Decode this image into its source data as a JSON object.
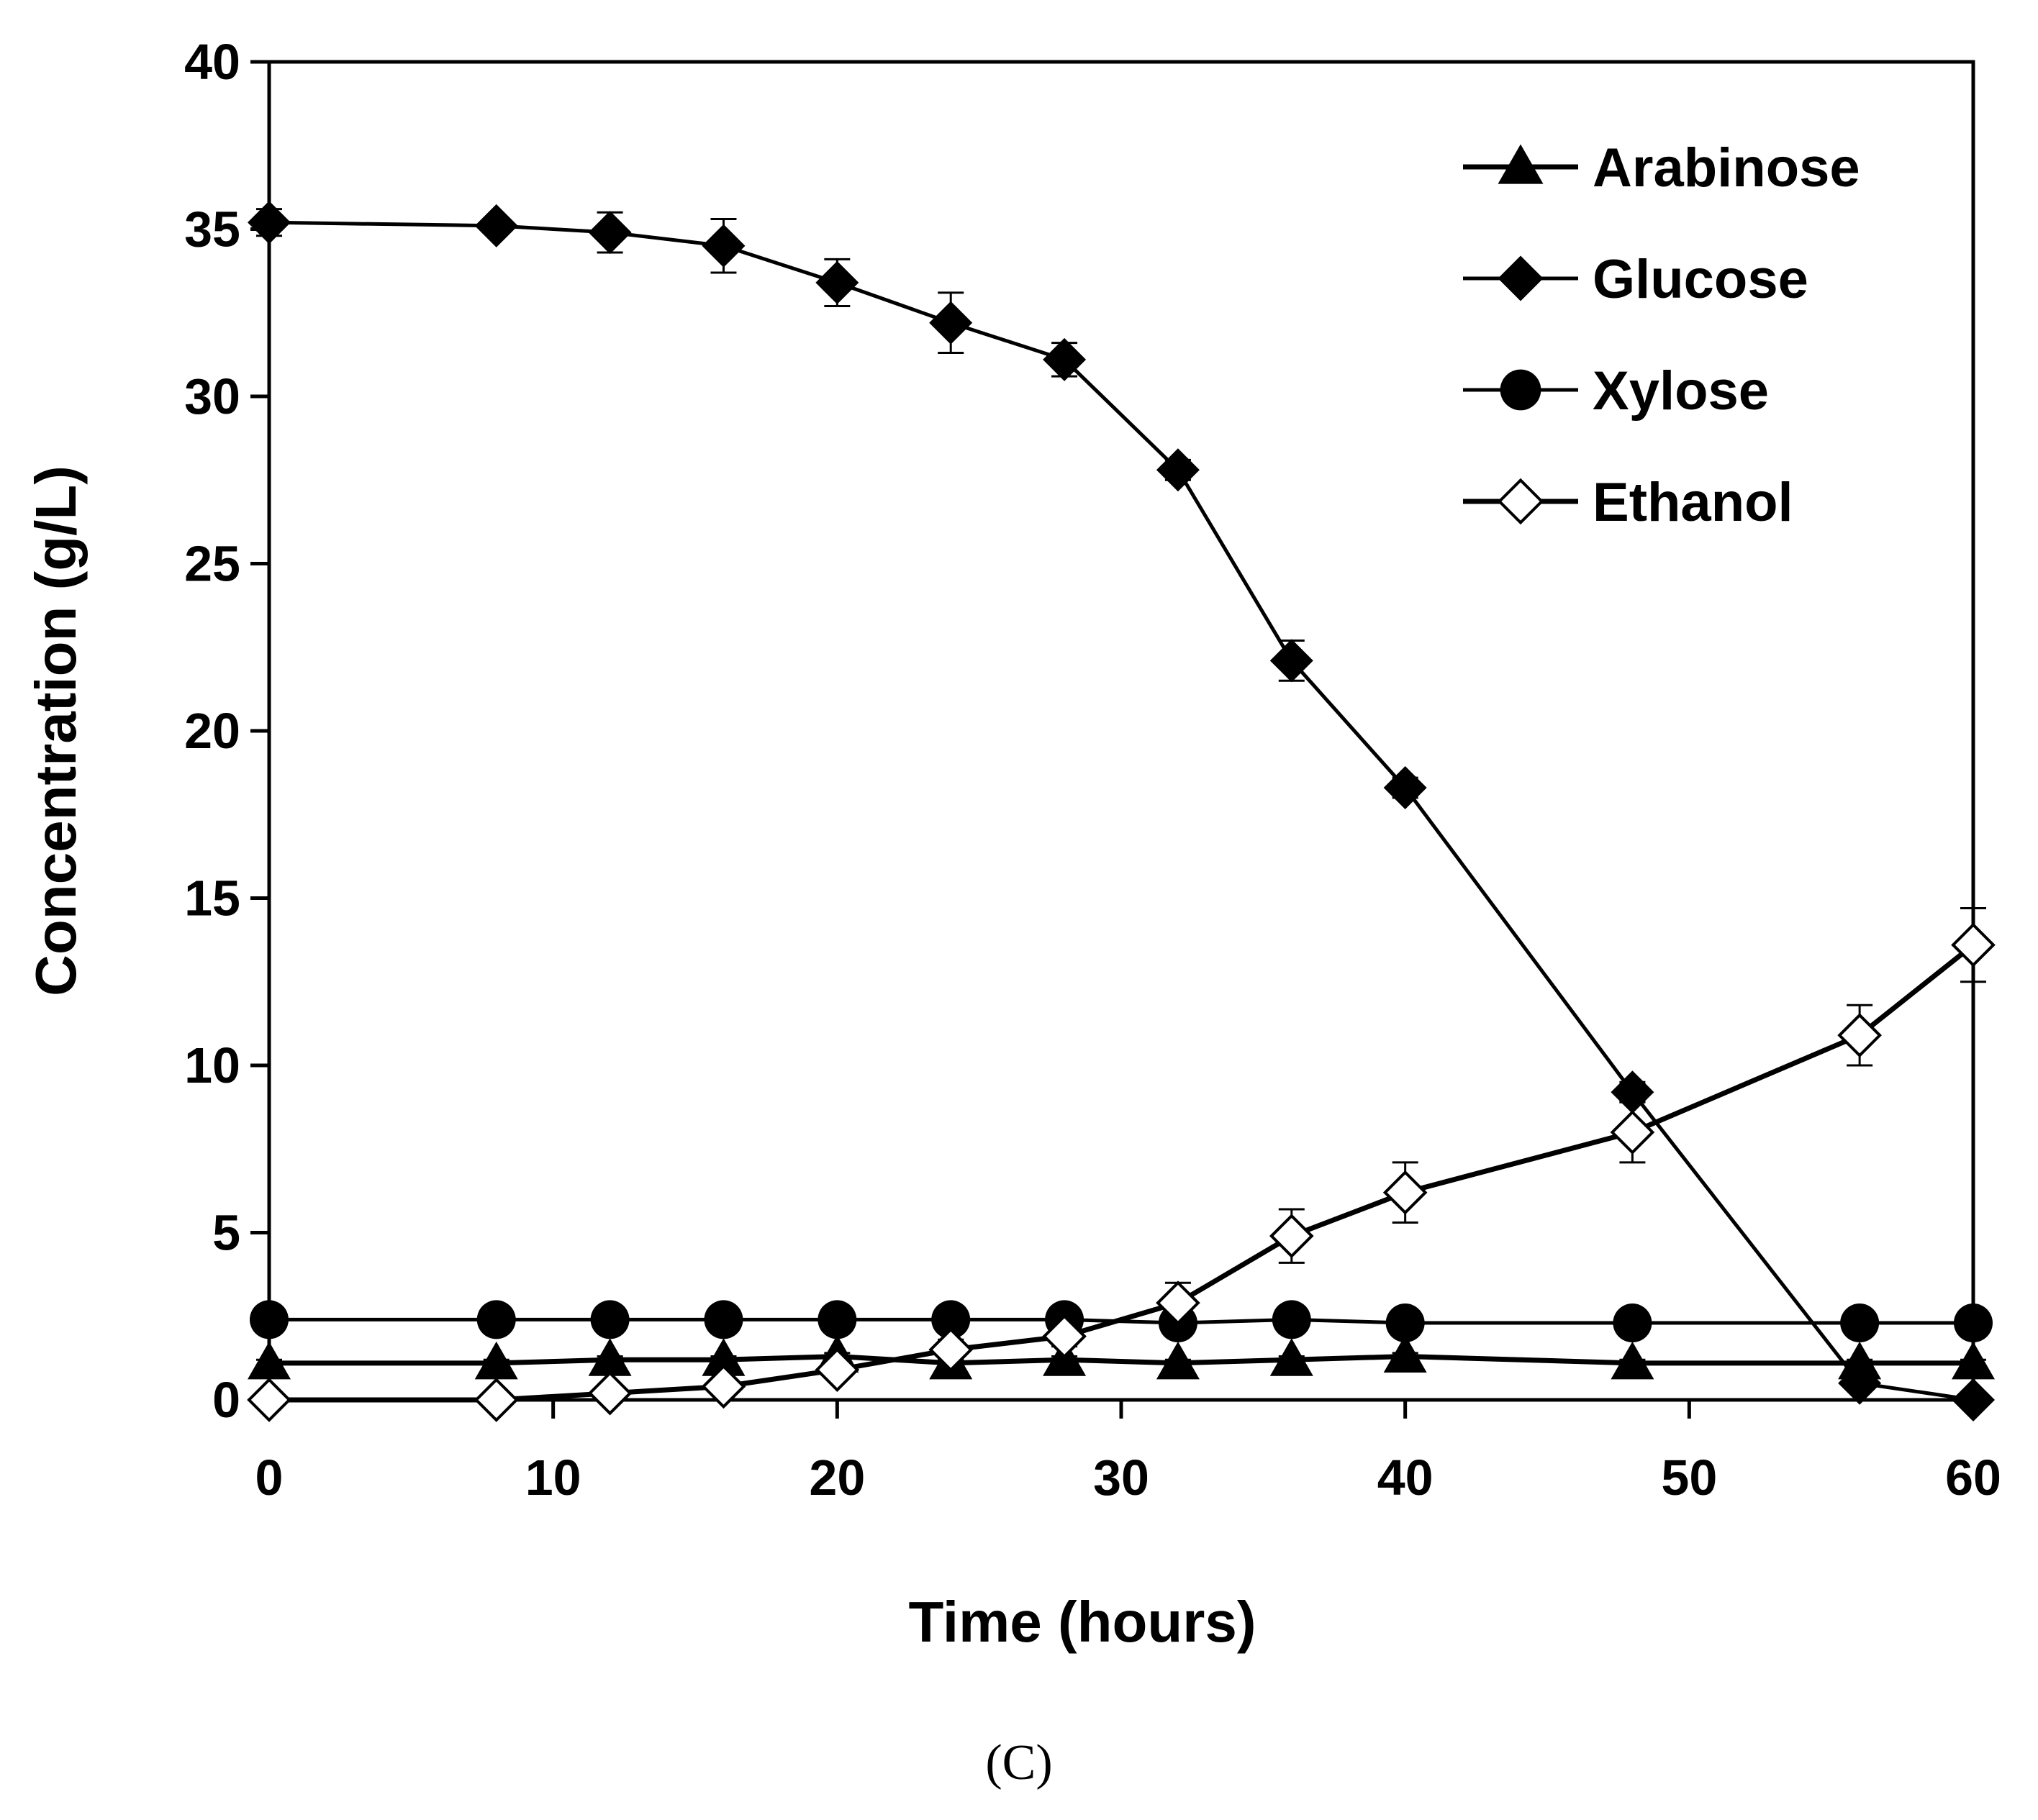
{
  "chart_data": {
    "type": "line",
    "title": "",
    "xlabel": "Time (hours)",
    "ylabel": "Concentration (g/L)",
    "xlim": [
      0,
      60
    ],
    "ylim": [
      0,
      40
    ],
    "xticks": [
      0,
      10,
      20,
      30,
      40,
      50,
      60
    ],
    "yticks": [
      0,
      5,
      10,
      15,
      20,
      25,
      30,
      35,
      40
    ],
    "x": [
      0,
      8,
      12,
      16,
      20,
      24,
      28,
      32,
      36,
      40,
      48,
      56,
      60
    ],
    "grid": false,
    "legend_position": "top-right",
    "series": [
      {
        "name": "Arabinose",
        "marker": "triangle-filled",
        "values": [
          1.1,
          1.1,
          1.2,
          1.2,
          1.3,
          1.1,
          1.2,
          1.1,
          1.2,
          1.3,
          1.1,
          1.1,
          1.1
        ],
        "errors": [
          0.1,
          0.1,
          0.1,
          0.1,
          0.1,
          0.1,
          0.1,
          0.1,
          0.1,
          0.1,
          0.1,
          0.1,
          0.1
        ]
      },
      {
        "name": "Glucose",
        "marker": "diamond-filled",
        "values": [
          35.2,
          35.1,
          34.9,
          34.5,
          33.4,
          32.2,
          31.1,
          27.8,
          22.1,
          18.3,
          9.2,
          0.5,
          0.0
        ],
        "errors": [
          0.4,
          0.2,
          0.6,
          0.8,
          0.7,
          0.9,
          0.5,
          0.3,
          0.6,
          0.3,
          0.3,
          0.2,
          0.1
        ]
      },
      {
        "name": "Xylose",
        "marker": "circle-filled",
        "values": [
          2.4,
          2.4,
          2.4,
          2.4,
          2.4,
          2.4,
          2.4,
          2.3,
          2.4,
          2.3,
          2.3,
          2.3,
          2.3
        ],
        "errors": [
          0.2,
          0.2,
          0.2,
          0.2,
          0.2,
          0.2,
          0.2,
          0.2,
          0.2,
          0.2,
          0.2,
          0.2,
          0.2
        ]
      },
      {
        "name": "Ethanol",
        "marker": "diamond-open",
        "values": [
          0.0,
          0.0,
          0.2,
          0.4,
          0.9,
          1.5,
          1.9,
          2.9,
          4.9,
          6.2,
          8.0,
          10.9,
          13.6
        ],
        "errors": [
          0.1,
          0.1,
          0.1,
          0.1,
          0.2,
          0.3,
          0.3,
          0.6,
          0.8,
          0.9,
          0.9,
          0.9,
          1.1
        ]
      }
    ],
    "annotations": [
      "(C)"
    ]
  }
}
